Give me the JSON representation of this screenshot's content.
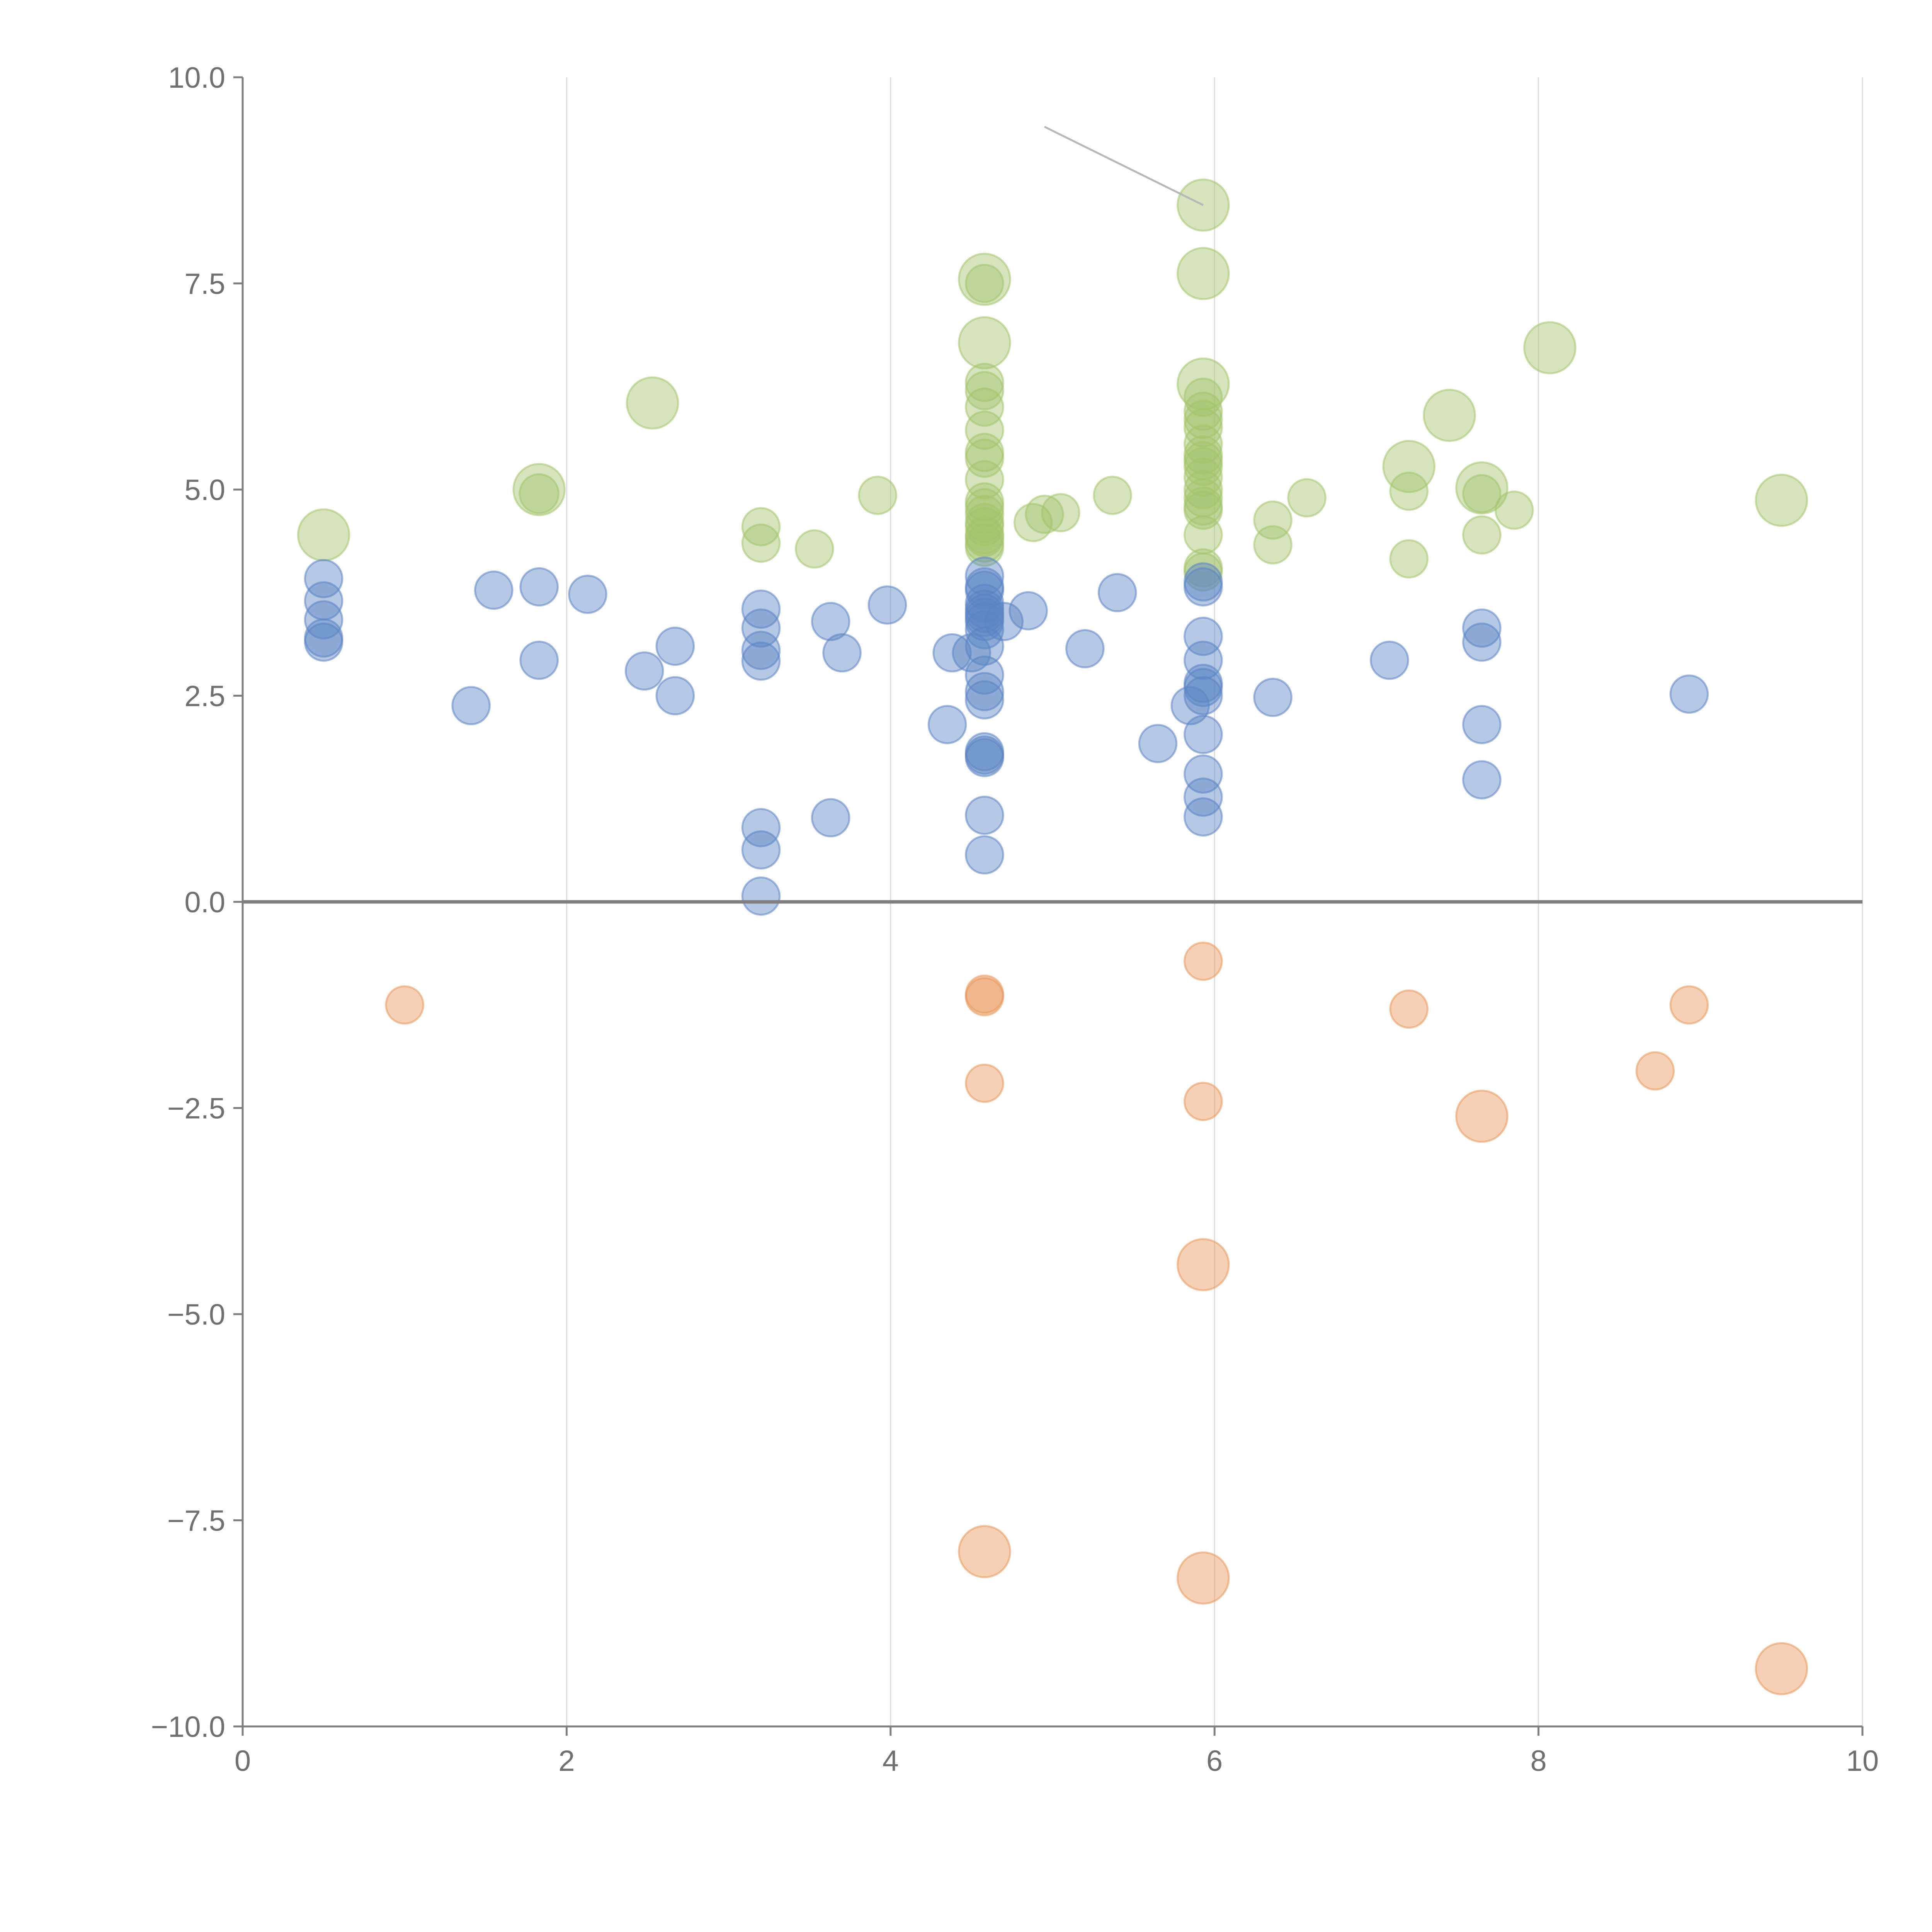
{
  "chart_data": {
    "type": "scatter",
    "title": "",
    "xlabel": "",
    "ylabel": "",
    "xlim": [
      0,
      10
    ],
    "ylim": [
      -10,
      10
    ],
    "grid": "vertical",
    "x_ticks": [
      "0",
      "2",
      "4",
      "6",
      "8",
      "10"
    ],
    "y_ticks": [
      "−10.0",
      "−7.5",
      "−5.0",
      "−2.5",
      "0.0",
      "2.5",
      "5.0",
      "7.5",
      "10.0"
    ],
    "colors": {
      "green": "#a4c46c",
      "blue": "#5b84c4",
      "orange": "#e8975a"
    },
    "annotations": [
      {
        "type": "leader-line",
        "from": [
          4.95,
          9.4
        ],
        "to": [
          5.93,
          8.45
        ]
      }
    ],
    "series": [
      {
        "name": "green",
        "color": "#a4c46c",
        "points": [
          [
            0.5,
            4.45,
            3.4
          ],
          [
            1.83,
            5.0,
            3.4
          ],
          [
            2.53,
            6.05,
            3.4
          ],
          [
            1.83,
            4.95,
            1.4
          ],
          [
            3.2,
            4.55,
            1.2
          ],
          [
            3.2,
            4.35,
            1.2
          ],
          [
            3.53,
            4.28,
            1.2
          ],
          [
            3.92,
            4.93,
            1.2
          ],
          [
            4.58,
            7.55,
            3.4
          ],
          [
            4.58,
            6.78,
            3.4
          ],
          [
            4.58,
            7.5,
            1.2
          ],
          [
            4.58,
            6.3,
            1.2
          ],
          [
            4.58,
            6.2,
            1.2
          ],
          [
            4.58,
            6.0,
            1.2
          ],
          [
            4.58,
            5.72,
            1.2
          ],
          [
            4.58,
            5.45,
            1.2
          ],
          [
            4.58,
            5.38,
            1.2
          ],
          [
            4.58,
            5.12,
            1.2
          ],
          [
            4.58,
            4.85,
            1.2
          ],
          [
            4.58,
            4.78,
            1.2
          ],
          [
            4.58,
            4.7,
            1.2
          ],
          [
            4.58,
            4.6,
            1.2
          ],
          [
            4.58,
            4.55,
            1.2
          ],
          [
            4.58,
            4.45,
            1.2
          ],
          [
            4.58,
            4.42,
            1.2
          ],
          [
            4.58,
            4.35,
            1.2
          ],
          [
            4.58,
            4.3,
            1.2
          ],
          [
            4.88,
            4.6,
            1.2
          ],
          [
            4.95,
            4.7,
            1.2
          ],
          [
            5.05,
            4.72,
            1.2
          ],
          [
            5.37,
            4.93,
            1.2
          ],
          [
            5.93,
            8.45,
            3.4
          ],
          [
            5.93,
            7.62,
            3.4
          ],
          [
            5.93,
            6.28,
            3.4
          ],
          [
            5.93,
            6.12,
            1.2
          ],
          [
            5.93,
            5.95,
            1.2
          ],
          [
            5.93,
            5.85,
            1.2
          ],
          [
            5.93,
            5.75,
            1.2
          ],
          [
            5.93,
            5.55,
            1.2
          ],
          [
            5.93,
            5.42,
            1.2
          ],
          [
            5.93,
            5.35,
            1.2
          ],
          [
            5.93,
            5.28,
            1.2
          ],
          [
            5.93,
            5.15,
            1.2
          ],
          [
            5.93,
            5.0,
            1.2
          ],
          [
            5.93,
            4.9,
            1.2
          ],
          [
            5.93,
            4.8,
            1.2
          ],
          [
            5.93,
            4.75,
            1.2
          ],
          [
            5.93,
            4.45,
            1.2
          ],
          [
            5.93,
            4.05,
            1.2
          ],
          [
            5.93,
            4.0,
            1.2
          ],
          [
            6.36,
            4.63,
            1.2
          ],
          [
            6.36,
            4.33,
            1.2
          ],
          [
            6.57,
            4.9,
            1.2
          ],
          [
            7.2,
            5.28,
            3.4
          ],
          [
            7.2,
            4.98,
            1.2
          ],
          [
            7.2,
            4.16,
            1.2
          ],
          [
            7.45,
            5.9,
            3.4
          ],
          [
            7.65,
            5.02,
            3.4
          ],
          [
            7.65,
            4.95,
            1.2
          ],
          [
            7.65,
            4.45,
            1.2
          ],
          [
            7.85,
            4.75,
            1.2
          ],
          [
            8.07,
            6.72,
            3.4
          ],
          [
            9.5,
            4.87,
            3.4
          ]
        ]
      },
      {
        "name": "blue",
        "color": "#5b84c4",
        "points": [
          [
            0.5,
            3.92,
            1.2
          ],
          [
            0.5,
            3.65,
            1.2
          ],
          [
            0.5,
            3.42,
            1.2
          ],
          [
            0.5,
            3.2,
            1.2
          ],
          [
            0.5,
            3.15,
            1.2
          ],
          [
            1.41,
            2.38,
            1.2
          ],
          [
            1.55,
            3.78,
            1.2
          ],
          [
            1.83,
            3.82,
            1.2
          ],
          [
            1.83,
            2.93,
            1.2
          ],
          [
            2.13,
            3.73,
            1.2
          ],
          [
            2.48,
            2.8,
            1.2
          ],
          [
            2.67,
            3.1,
            1.2
          ],
          [
            2.67,
            2.5,
            1.2
          ],
          [
            3.2,
            3.55,
            1.2
          ],
          [
            3.2,
            3.32,
            1.2
          ],
          [
            3.2,
            3.05,
            1.2
          ],
          [
            3.2,
            2.92,
            1.2
          ],
          [
            3.2,
            0.9,
            1.2
          ],
          [
            3.2,
            0.63,
            1.2
          ],
          [
            3.2,
            0.07,
            1.2
          ],
          [
            3.63,
            3.4,
            1.2
          ],
          [
            3.63,
            1.02,
            1.2
          ],
          [
            3.7,
            3.02,
            1.2
          ],
          [
            3.98,
            3.6,
            1.2
          ],
          [
            4.35,
            2.15,
            1.2
          ],
          [
            4.38,
            3.02,
            1.2
          ],
          [
            4.5,
            3.02,
            1.2
          ],
          [
            4.58,
            3.95,
            1.2
          ],
          [
            4.58,
            3.82,
            1.2
          ],
          [
            4.58,
            3.78,
            1.2
          ],
          [
            4.58,
            3.62,
            1.2
          ],
          [
            4.58,
            3.55,
            1.2
          ],
          [
            4.58,
            3.5,
            1.2
          ],
          [
            4.58,
            3.45,
            1.2
          ],
          [
            4.58,
            3.4,
            1.2
          ],
          [
            4.58,
            3.3,
            1.2
          ],
          [
            4.58,
            3.1,
            1.2
          ],
          [
            4.58,
            2.75,
            1.2
          ],
          [
            4.58,
            2.55,
            1.2
          ],
          [
            4.58,
            2.45,
            1.2
          ],
          [
            4.58,
            1.82,
            1.2
          ],
          [
            4.58,
            1.78,
            1.2
          ],
          [
            4.58,
            1.75,
            1.2
          ],
          [
            4.58,
            1.05,
            1.2
          ],
          [
            4.58,
            0.57,
            1.2
          ],
          [
            4.7,
            3.4,
            1.2
          ],
          [
            4.85,
            3.53,
            1.2
          ],
          [
            5.2,
            3.07,
            1.2
          ],
          [
            5.4,
            3.75,
            1.2
          ],
          [
            5.65,
            1.92,
            1.2
          ],
          [
            5.85,
            2.38,
            1.2
          ],
          [
            5.93,
            3.88,
            1.2
          ],
          [
            5.93,
            3.82,
            1.2
          ],
          [
            5.93,
            3.22,
            1.2
          ],
          [
            5.93,
            2.93,
            1.2
          ],
          [
            5.93,
            2.65,
            1.2
          ],
          [
            5.93,
            2.6,
            1.2
          ],
          [
            5.93,
            2.5,
            1.2
          ],
          [
            5.93,
            2.03,
            1.2
          ],
          [
            5.93,
            1.55,
            1.2
          ],
          [
            5.93,
            1.27,
            1.2
          ],
          [
            5.93,
            1.03,
            1.2
          ],
          [
            6.36,
            2.48,
            1.2
          ],
          [
            7.08,
            2.93,
            1.2
          ],
          [
            7.65,
            3.32,
            1.2
          ],
          [
            7.65,
            3.15,
            1.2
          ],
          [
            7.65,
            2.15,
            1.2
          ],
          [
            7.65,
            1.48,
            1.2
          ],
          [
            8.93,
            2.52,
            1.2
          ]
        ]
      },
      {
        "name": "orange",
        "color": "#e8975a",
        "points": [
          [
            1.0,
            -1.25,
            1.2
          ],
          [
            4.58,
            -1.12,
            1.2
          ],
          [
            4.58,
            -1.15,
            1.2
          ],
          [
            4.58,
            -2.2,
            1.2
          ],
          [
            4.58,
            -7.88,
            3.4
          ],
          [
            5.93,
            -0.72,
            1.2
          ],
          [
            5.93,
            -2.42,
            1.2
          ],
          [
            5.93,
            -4.4,
            3.4
          ],
          [
            5.93,
            -8.2,
            3.4
          ],
          [
            7.2,
            -1.3,
            1.2
          ],
          [
            7.65,
            -2.6,
            3.4
          ],
          [
            8.72,
            -2.05,
            1.2
          ],
          [
            8.93,
            -1.25,
            1.2
          ],
          [
            9.5,
            -9.3,
            3.4
          ]
        ]
      }
    ]
  }
}
